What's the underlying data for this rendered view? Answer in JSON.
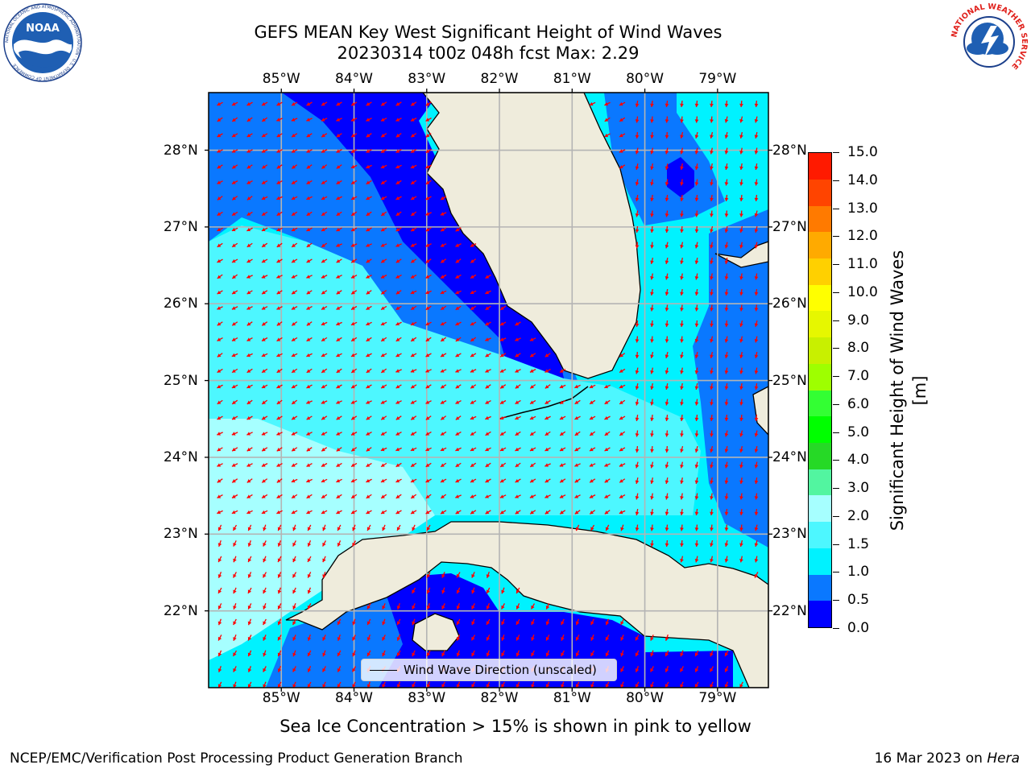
{
  "header": {
    "title_line1": "GEFS MEAN Key West Significant Height of Wind Waves",
    "title_line2": "20230314 t00z 048h fcst   Max: 2.29"
  },
  "logos": {
    "noaa_text": "NOAA",
    "noaa_ring_text": "NATIONAL OCEANIC AND ATMOSPHERIC ADMINISTRATION · U.S. DEPARTMENT OF COMMERCE",
    "nws_ring_text": "NATIONAL WEATHER SERVICE"
  },
  "map": {
    "lon_labels": [
      "85°W",
      "84°W",
      "83°W",
      "82°W",
      "81°W",
      "80°W",
      "79°W"
    ],
    "lat_labels": [
      "28°N",
      "27°N",
      "26°N",
      "25°N",
      "24°N",
      "23°N",
      "22°N"
    ],
    "extent": {
      "lon_min": -86.0,
      "lon_max": -78.3,
      "lat_min": 21.0,
      "lat_max": 28.75
    },
    "legend_label": "Wind Wave Direction (unscaled)",
    "arrow_color": "#ff0000",
    "land_color": "#efecdc"
  },
  "colorbar": {
    "label": "Significant Height of Wind Waves [m]",
    "tick_labels": [
      "0.0",
      "0.5",
      "1.0",
      "1.5",
      "2.0",
      "3.0",
      "4.0",
      "5.0",
      "6.0",
      "7.0",
      "8.0",
      "9.0",
      "10.0",
      "11.0",
      "12.0",
      "13.0",
      "14.0",
      "15.0"
    ],
    "colors": [
      "#0000ff",
      "#0a78ff",
      "#00f2ff",
      "#4df7ff",
      "#a6ffff",
      "#52f5a0",
      "#26d926",
      "#00ff00",
      "#33ff33",
      "#9eff00",
      "#c8f000",
      "#e6f700",
      "#ffff00",
      "#ffd000",
      "#ffaa00",
      "#ff7a00",
      "#ff4400",
      "#ff1a00"
    ]
  },
  "caption": "Sea Ice Concentration > 15% is shown in pink to yellow",
  "footer": {
    "left": "NCEP/EMC/Verification Post Processing Product Generation Branch",
    "right_prefix": "16 Mar 2023 on ",
    "right_italic": "Hera"
  }
}
